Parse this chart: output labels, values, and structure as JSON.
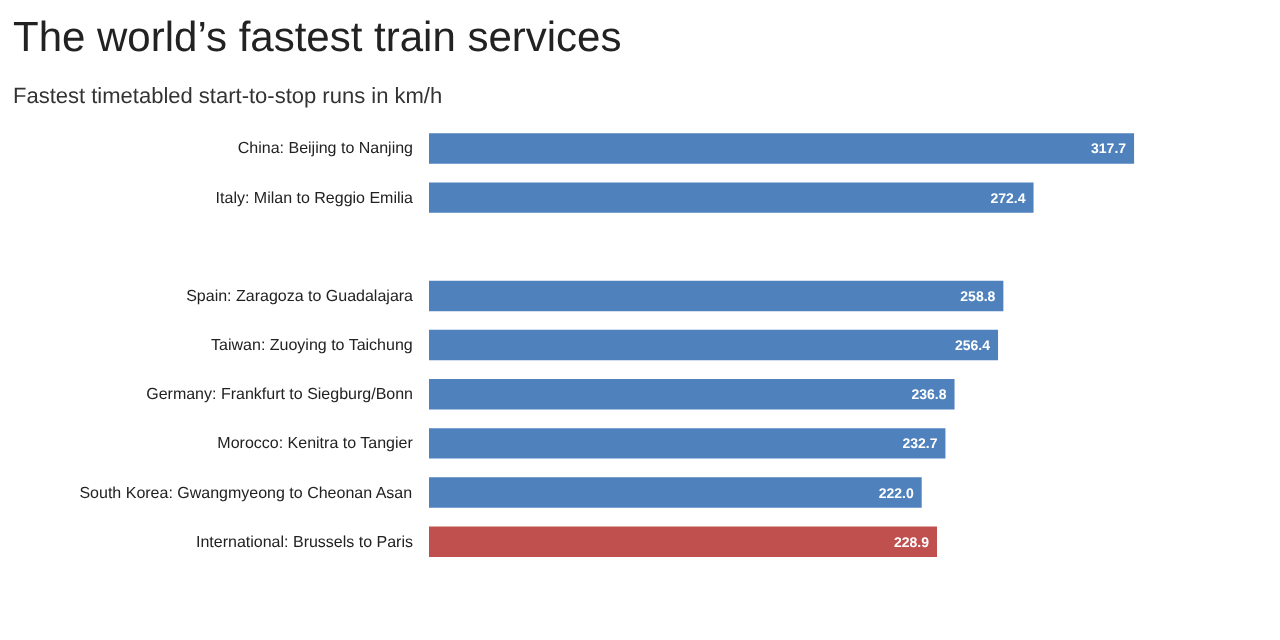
{
  "chart_data": {
    "type": "bar",
    "orientation": "horizontal",
    "title": "The world’s fastest train services",
    "subtitle": "Fastest timetabled start-to-stop runs in km/h",
    "categories": [
      "China: Beijing to Nanjing",
      "Italy: Milan to Reggio Emilia",
      null,
      "Spain: Zaragoza to Guadalajara",
      "Taiwan: Zuoying to Taichung",
      "Germany: Frankfurt to Siegburg/Bonn",
      "Morocco: Kenitra to Tangier",
      "South Korea: Gwangmyeong to Cheonan Asan",
      "International: Brussels to Paris"
    ],
    "values": [
      317.7,
      272.4,
      null,
      258.8,
      256.4,
      236.8,
      232.7,
      222.0,
      228.9
    ],
    "value_labels": [
      "317.7",
      "272.4",
      null,
      "258.8",
      "256.4",
      "236.8",
      "232.7",
      "222.0",
      "228.9"
    ],
    "colors": [
      "#4f81bd",
      "#4f81bd",
      "#4f81bd",
      "#4f81bd",
      "#4f81bd",
      "#4f81bd",
      "#4f81bd",
      "#4f81bd",
      "#c0504d"
    ],
    "grid": false
  }
}
